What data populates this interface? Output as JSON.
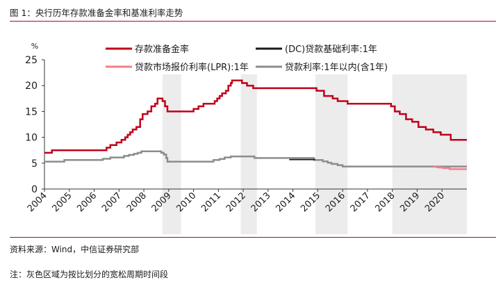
{
  "header": {
    "title": "图 1：央行历年存款准备金率和基准利率走势"
  },
  "footer": {
    "source": "资料来源：Wind，中信证券研究部",
    "note": "注：灰色区域为按比划分的宽松周期时间段"
  },
  "chart_data": {
    "type": "line",
    "ylabel": "%",
    "xlabel": "",
    "title": "",
    "xlim": [
      2004.0,
      2021.0
    ],
    "ylim": [
      0,
      25
    ],
    "yticks": [
      0,
      5,
      10,
      15,
      20,
      25
    ],
    "xticks": [
      2004,
      2005,
      2006,
      2007,
      2008,
      2009,
      2010,
      2011,
      2012,
      2013,
      2014,
      2015,
      2016,
      2017,
      2018,
      2019,
      2020
    ],
    "grid": false,
    "legend_position": "top",
    "shaded_periods": [
      [
        2008.75,
        2009.5
      ],
      [
        2011.9,
        2012.55
      ],
      [
        2014.9,
        2016.2
      ],
      [
        2018.0,
        2021.0
      ]
    ],
    "series": [
      {
        "name": "存款准备金率",
        "color": "#c0001a",
        "width": 2.5,
        "step": true,
        "points": [
          [
            2004.0,
            7.0
          ],
          [
            2004.3,
            7.5
          ],
          [
            2006.5,
            8.0
          ],
          [
            2006.65,
            8.5
          ],
          [
            2006.9,
            9.0
          ],
          [
            2007.1,
            9.5
          ],
          [
            2007.25,
            10.0
          ],
          [
            2007.35,
            10.5
          ],
          [
            2007.45,
            11.0
          ],
          [
            2007.55,
            11.5
          ],
          [
            2007.7,
            12.0
          ],
          [
            2007.85,
            13.5
          ],
          [
            2007.95,
            14.5
          ],
          [
            2008.15,
            15.0
          ],
          [
            2008.3,
            16.0
          ],
          [
            2008.45,
            16.5
          ],
          [
            2008.55,
            17.5
          ],
          [
            2008.75,
            17.0
          ],
          [
            2008.85,
            16.0
          ],
          [
            2008.95,
            15.0
          ],
          [
            2010.0,
            15.5
          ],
          [
            2010.2,
            16.0
          ],
          [
            2010.4,
            16.5
          ],
          [
            2010.85,
            17.0
          ],
          [
            2010.95,
            17.5
          ],
          [
            2011.05,
            18.0
          ],
          [
            2011.15,
            18.5
          ],
          [
            2011.3,
            19.0
          ],
          [
            2011.4,
            20.0
          ],
          [
            2011.5,
            20.5
          ],
          [
            2011.55,
            21.0
          ],
          [
            2011.95,
            20.5
          ],
          [
            2012.15,
            20.0
          ],
          [
            2012.4,
            19.5
          ],
          [
            2014.95,
            19.0
          ],
          [
            2015.25,
            18.0
          ],
          [
            2015.6,
            17.5
          ],
          [
            2015.8,
            17.0
          ],
          [
            2016.2,
            16.5
          ],
          [
            2017.95,
            16.0
          ],
          [
            2018.1,
            15.0
          ],
          [
            2018.3,
            14.5
          ],
          [
            2018.55,
            13.5
          ],
          [
            2018.8,
            13.0
          ],
          [
            2019.05,
            12.0
          ],
          [
            2019.35,
            11.5
          ],
          [
            2019.65,
            11.0
          ],
          [
            2019.95,
            10.5
          ],
          [
            2020.35,
            9.5
          ],
          [
            2021.0,
            9.5
          ]
        ]
      },
      {
        "name": "(DC)贷款基础利率:1年",
        "color": "#1a1a1a",
        "width": 1.8,
        "step": true,
        "points": [
          [
            2013.85,
            5.7
          ],
          [
            2014.9,
            5.7
          ]
        ]
      },
      {
        "name": "贷款市场报价利率(LPR):1年",
        "color": "#f07f8a",
        "width": 2.5,
        "step": true,
        "points": [
          [
            2019.65,
            4.3
          ],
          [
            2019.8,
            4.2
          ],
          [
            2019.9,
            4.15
          ],
          [
            2020.05,
            4.05
          ],
          [
            2020.3,
            3.85
          ],
          [
            2021.0,
            3.85
          ]
        ]
      },
      {
        "name": "贷款利率:1年以内(含1年)",
        "color": "#8c8c8c",
        "width": 2.5,
        "step": true,
        "points": [
          [
            2004.0,
            5.3
          ],
          [
            2004.8,
            5.6
          ],
          [
            2006.35,
            5.85
          ],
          [
            2006.65,
            6.1
          ],
          [
            2007.2,
            6.4
          ],
          [
            2007.4,
            6.6
          ],
          [
            2007.6,
            6.8
          ],
          [
            2007.75,
            7.0
          ],
          [
            2007.9,
            7.3
          ],
          [
            2008.7,
            7.0
          ],
          [
            2008.8,
            6.7
          ],
          [
            2008.9,
            6.0
          ],
          [
            2008.95,
            5.3
          ],
          [
            2010.8,
            5.6
          ],
          [
            2011.05,
            5.8
          ],
          [
            2011.25,
            6.1
          ],
          [
            2011.5,
            6.3
          ],
          [
            2012.45,
            6.0
          ],
          [
            2012.55,
            6.0
          ],
          [
            2014.85,
            5.6
          ],
          [
            2015.2,
            5.35
          ],
          [
            2015.4,
            5.1
          ],
          [
            2015.55,
            4.85
          ],
          [
            2015.8,
            4.6
          ],
          [
            2016.0,
            4.35
          ],
          [
            2021.0,
            4.35
          ]
        ]
      }
    ]
  }
}
